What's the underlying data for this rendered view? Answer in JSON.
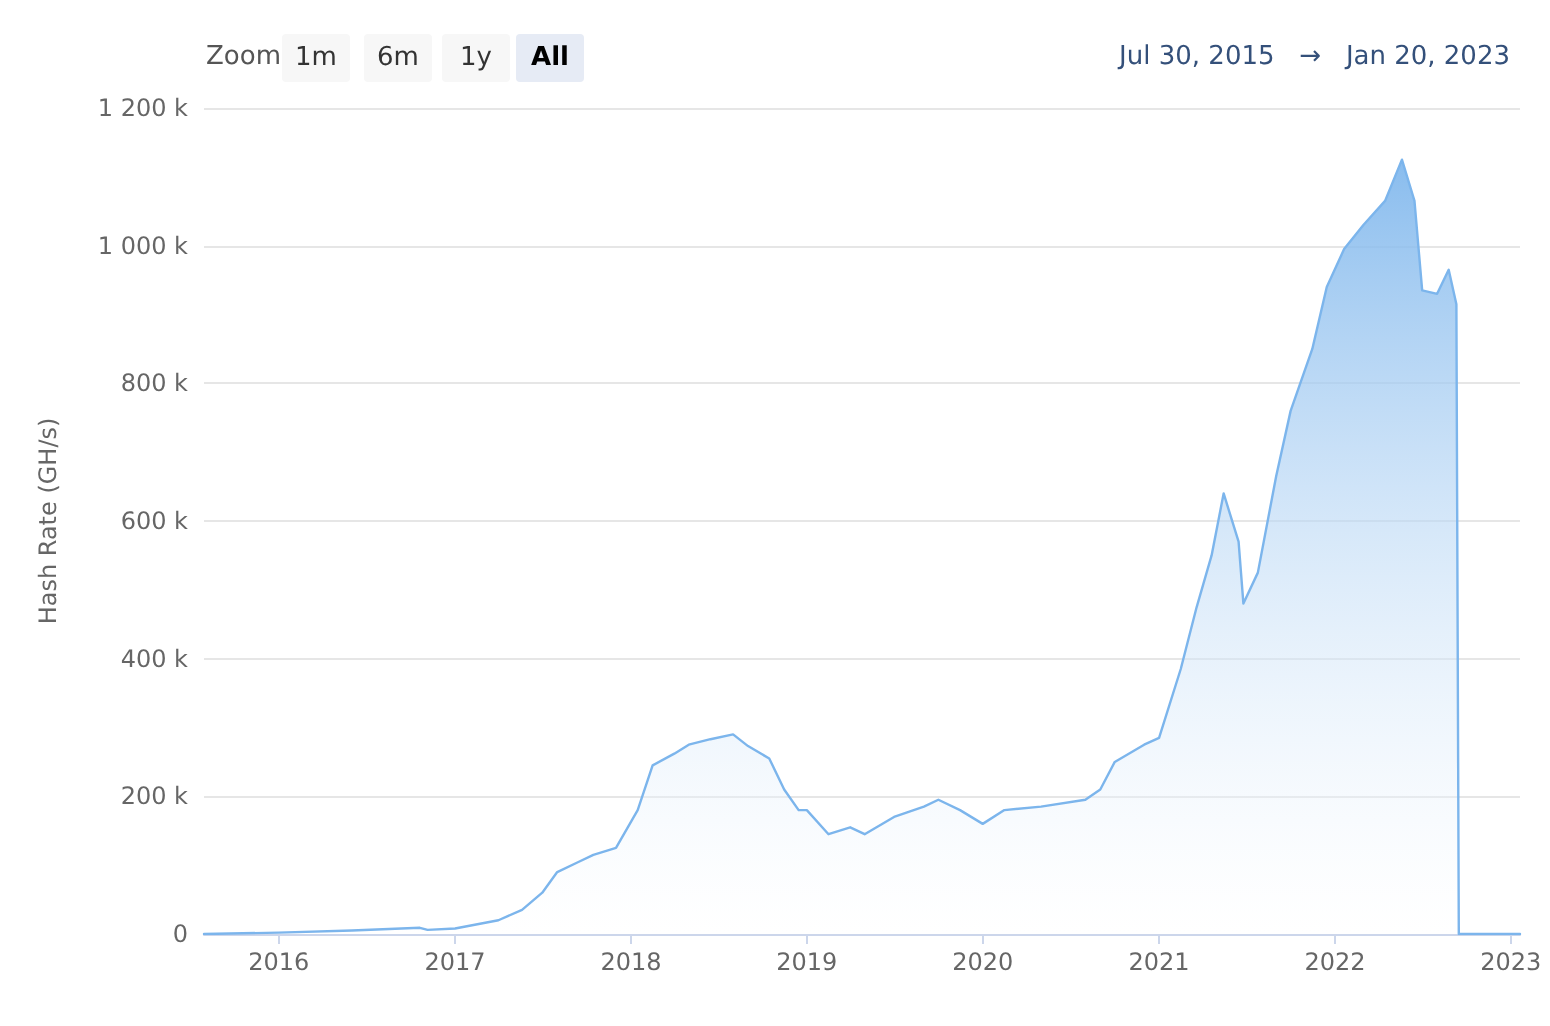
{
  "chart_data": {
    "type": "area",
    "ylabel": "Hash Rate (GH/s)",
    "annotations": [
      "Zoom",
      "1m",
      "6m",
      "1y",
      "All",
      "Jul 30, 2015",
      "→",
      "Jan 20, 2023"
    ],
    "x": [
      "2015-07-30",
      "2016-01-01",
      "2016-06-01",
      "2016-10-20",
      "2016-11-05",
      "2017-01-01",
      "2017-04-01",
      "2017-05-20",
      "2017-07-01",
      "2017-08-01",
      "2017-09-15",
      "2017-10-15",
      "2017-12-01",
      "2018-01-15",
      "2018-02-15",
      "2018-04-01",
      "2018-05-01",
      "2018-06-15",
      "2018-08-01",
      "2018-09-01",
      "2018-10-15",
      "2018-11-15",
      "2018-12-15",
      "2019-01-01",
      "2019-02-15",
      "2019-04-01",
      "2019-05-01",
      "2019-07-01",
      "2019-09-01",
      "2019-10-01",
      "2019-11-15",
      "2020-01-01",
      "2020-02-15",
      "2020-05-01",
      "2020-08-01",
      "2020-09-01",
      "2020-10-01",
      "2020-12-01",
      "2021-01-01",
      "2021-02-15",
      "2021-03-20",
      "2021-04-20",
      "2021-05-15",
      "2021-06-15",
      "2021-06-25",
      "2021-07-25",
      "2021-09-01",
      "2021-10-01",
      "2021-11-15",
      "2021-12-15",
      "2022-01-20",
      "2022-03-01",
      "2022-04-15",
      "2022-05-20",
      "2022-06-15",
      "2022-07-01",
      "2022-08-01",
      "2022-08-25",
      "2022-09-10",
      "2022-09-15",
      "2023-01-20"
    ],
    "series": [
      {
        "color": "#7cb5ec",
        "values": [
          0,
          2000,
          5000,
          9000,
          6000,
          8000,
          20000,
          35000,
          60000,
          90000,
          105000,
          115000,
          125000,
          180000,
          245000,
          262000,
          275000,
          283000,
          290000,
          273000,
          255000,
          210000,
          180000,
          180000,
          145000,
          155000,
          145000,
          170000,
          185000,
          195000,
          180000,
          160000,
          180000,
          185000,
          195000,
          210000,
          250000,
          275000,
          285000,
          385000,
          475000,
          550000,
          640000,
          570000,
          480000,
          525000,
          665000,
          760000,
          850000,
          940000,
          995000,
          1030000,
          1065000,
          1125000,
          1065000,
          935000,
          930000,
          965000,
          915000,
          0,
          0
        ]
      }
    ],
    "xlim": [
      "2015-07-30",
      "2023-01-20"
    ],
    "xticks": [
      "2016",
      "2017",
      "2018",
      "2019",
      "2020",
      "2021",
      "2022",
      "2023"
    ],
    "ylim": [
      0,
      1200000
    ],
    "yticks": [
      0,
      {
        "value": 200000,
        "label": "200 k"
      },
      {
        "value": 400000,
        "label": "400 k"
      },
      {
        "value": 600000,
        "label": "600 k"
      },
      {
        "value": 800000,
        "label": "800 k"
      },
      {
        "value": 1000000,
        "label": "1 000 k"
      },
      {
        "value": 1200000,
        "label": "1 200 k"
      }
    ],
    "grid": "y",
    "marker": "none",
    "line_style": "solid"
  }
}
